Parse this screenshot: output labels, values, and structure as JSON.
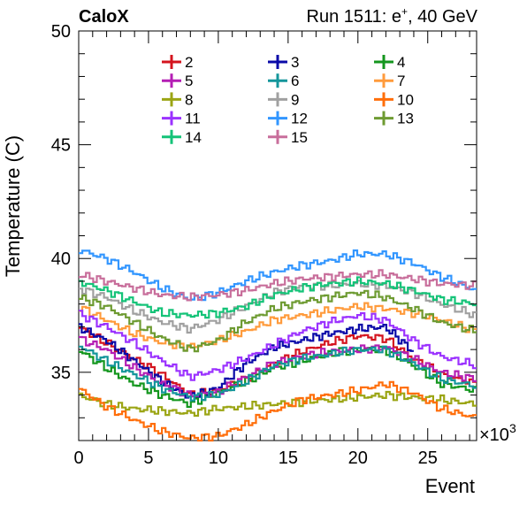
{
  "chart_data": {
    "type": "line",
    "title_left": "CaloX",
    "title_right": "Run 1511: e",
    "title_right_sup": "+",
    "title_right_tail": ", 40 GeV",
    "xlabel": "Event",
    "ylabel": "Temperature (C)",
    "x_multiplier": "×10",
    "x_multiplier_exp": "3",
    "xlim": [
      0,
      28.5
    ],
    "ylim": [
      32,
      50
    ],
    "x_ticks": [
      0,
      5,
      10,
      15,
      20,
      25
    ],
    "y_ticks": [
      35,
      40,
      45,
      50
    ],
    "x_tick_labels": [
      "0",
      "5",
      "10",
      "15",
      "20",
      "25"
    ],
    "y_tick_labels": [
      "35",
      "40",
      "45",
      "50"
    ],
    "grid": false,
    "legend_position": "top-center",
    "series": [
      {
        "name": "2",
        "color": "#d4141e",
        "x": [
          0,
          2,
          4,
          6,
          8,
          10,
          12,
          14,
          16,
          18,
          20,
          22,
          24,
          26,
          28.5
        ],
        "y": [
          37.0,
          36.3,
          35.6,
          34.9,
          34.0,
          34.2,
          34.7,
          35.4,
          35.9,
          36.3,
          36.6,
          36.5,
          35.6,
          34.9,
          34.5
        ]
      },
      {
        "name": "3",
        "color": "#0a0aa8",
        "x": [
          0,
          2,
          4,
          6,
          8,
          10,
          12,
          14,
          16,
          18,
          20,
          22,
          24
        ],
        "y": [
          37.0,
          36.4,
          35.5,
          34.6,
          33.9,
          34.3,
          35.4,
          36.1,
          36.4,
          36.7,
          36.9,
          37.0,
          35.9
        ]
      },
      {
        "name": "4",
        "color": "#14961e",
        "x": [
          0,
          2,
          4,
          6,
          8,
          10,
          12,
          14,
          16,
          18,
          20,
          22,
          24,
          26,
          28.5
        ],
        "y": [
          36.0,
          35.2,
          34.5,
          34.0,
          33.6,
          34.1,
          34.6,
          35.2,
          35.5,
          35.8,
          36.0,
          36.0,
          35.3,
          34.5,
          34.2
        ]
      },
      {
        "name": "5",
        "color": "#b41eb4",
        "x": [
          0,
          2,
          4,
          6,
          8,
          10,
          12,
          14,
          16,
          18,
          20,
          22,
          24,
          26,
          28.5
        ],
        "y": [
          36.5,
          36.0,
          35.2,
          34.5,
          34.0,
          34.1,
          34.8,
          35.4,
          35.7,
          35.9,
          36.0,
          36.1,
          35.6,
          35.0,
          34.7
        ]
      },
      {
        "name": "6",
        "color": "#14969b",
        "x": [
          0,
          2,
          4,
          6,
          8,
          10,
          12,
          14,
          16,
          18,
          20,
          22,
          24,
          26,
          28.5
        ],
        "y": [
          36.2,
          35.5,
          34.9,
          34.3,
          33.9,
          34.0,
          34.6,
          35.3,
          35.6,
          35.8,
          36.0,
          36.0,
          35.4,
          34.7,
          34.4
        ]
      },
      {
        "name": "7",
        "color": "#ff9b3c",
        "x": [
          0,
          2,
          4,
          6,
          8,
          10,
          12,
          14,
          16,
          18,
          20,
          22,
          24,
          26,
          28.5
        ],
        "y": [
          37.9,
          37.3,
          36.7,
          36.3,
          36.1,
          36.4,
          36.8,
          37.3,
          37.5,
          37.7,
          37.9,
          37.8,
          37.6,
          37.3,
          36.8
        ]
      },
      {
        "name": "8",
        "color": "#9ba514",
        "x": [
          0,
          2,
          4,
          6,
          8,
          10,
          12,
          14,
          16,
          18,
          20,
          22,
          24,
          26,
          28.5
        ],
        "y": [
          34.0,
          33.6,
          33.4,
          33.3,
          33.2,
          33.4,
          33.5,
          33.6,
          33.7,
          33.8,
          33.9,
          34.0,
          33.9,
          33.8,
          33.6
        ]
      },
      {
        "name": "9",
        "color": "#a0a0a0",
        "x": [
          0,
          2,
          4,
          6,
          8,
          10,
          12,
          14,
          16,
          18,
          20,
          22,
          24,
          26,
          28.5
        ],
        "y": [
          38.7,
          38.3,
          37.7,
          37.2,
          36.9,
          37.3,
          37.9,
          38.5,
          38.8,
          38.8,
          38.9,
          38.8,
          38.5,
          38.0,
          37.5
        ]
      },
      {
        "name": "10",
        "color": "#ff6e0a",
        "x": [
          0,
          2,
          4,
          6,
          8,
          10,
          12,
          14,
          16,
          18,
          20,
          22,
          24,
          26,
          28.5
        ],
        "y": [
          34.3,
          33.5,
          32.9,
          32.4,
          32.1,
          32.2,
          32.7,
          33.3,
          33.8,
          34.0,
          34.2,
          34.5,
          34.1,
          33.4,
          33.0
        ]
      },
      {
        "name": "11",
        "color": "#9b32ff",
        "x": [
          0,
          2,
          4,
          6,
          8,
          10,
          12,
          14,
          16,
          18,
          20,
          22,
          24,
          26,
          28.5
        ],
        "y": [
          37.6,
          37.0,
          36.3,
          35.5,
          34.8,
          35.1,
          35.6,
          36.2,
          36.8,
          37.2,
          37.5,
          37.3,
          36.4,
          35.7,
          35.3
        ]
      },
      {
        "name": "12",
        "color": "#3296ff",
        "x": [
          0,
          2,
          4,
          6,
          8,
          10,
          12,
          14,
          16,
          18,
          20,
          22,
          24,
          26,
          28.5
        ],
        "y": [
          40.4,
          40.0,
          39.4,
          38.7,
          38.2,
          38.5,
          39.0,
          39.4,
          39.7,
          39.9,
          40.2,
          40.2,
          39.8,
          39.2,
          38.6
        ]
      },
      {
        "name": "13",
        "color": "#6e9b32",
        "x": [
          0,
          2,
          4,
          6,
          8,
          10,
          12,
          14,
          16,
          18,
          20,
          22,
          24,
          26,
          28.5
        ],
        "y": [
          38.3,
          37.9,
          37.2,
          36.5,
          36.0,
          36.4,
          37.2,
          37.8,
          38.1,
          38.3,
          38.5,
          38.3,
          37.8,
          37.2,
          36.8
        ]
      },
      {
        "name": "14",
        "color": "#14c378",
        "x": [
          0,
          2,
          4,
          6,
          8,
          10,
          12,
          14,
          16,
          18,
          20,
          22,
          24,
          26,
          28.5
        ],
        "y": [
          39.0,
          38.6,
          38.1,
          37.6,
          37.5,
          37.6,
          37.9,
          38.4,
          38.7,
          38.9,
          39.0,
          38.9,
          38.6,
          38.2,
          38.0
        ]
      },
      {
        "name": "15",
        "color": "#c86e9b",
        "x": [
          0,
          2,
          4,
          6,
          8,
          10,
          12,
          14,
          16,
          18,
          20,
          22,
          24,
          26,
          28.5
        ],
        "y": [
          39.3,
          39.0,
          38.7,
          38.4,
          38.3,
          38.4,
          38.6,
          38.9,
          39.1,
          39.2,
          39.3,
          39.3,
          39.1,
          38.9,
          38.8
        ]
      }
    ]
  }
}
